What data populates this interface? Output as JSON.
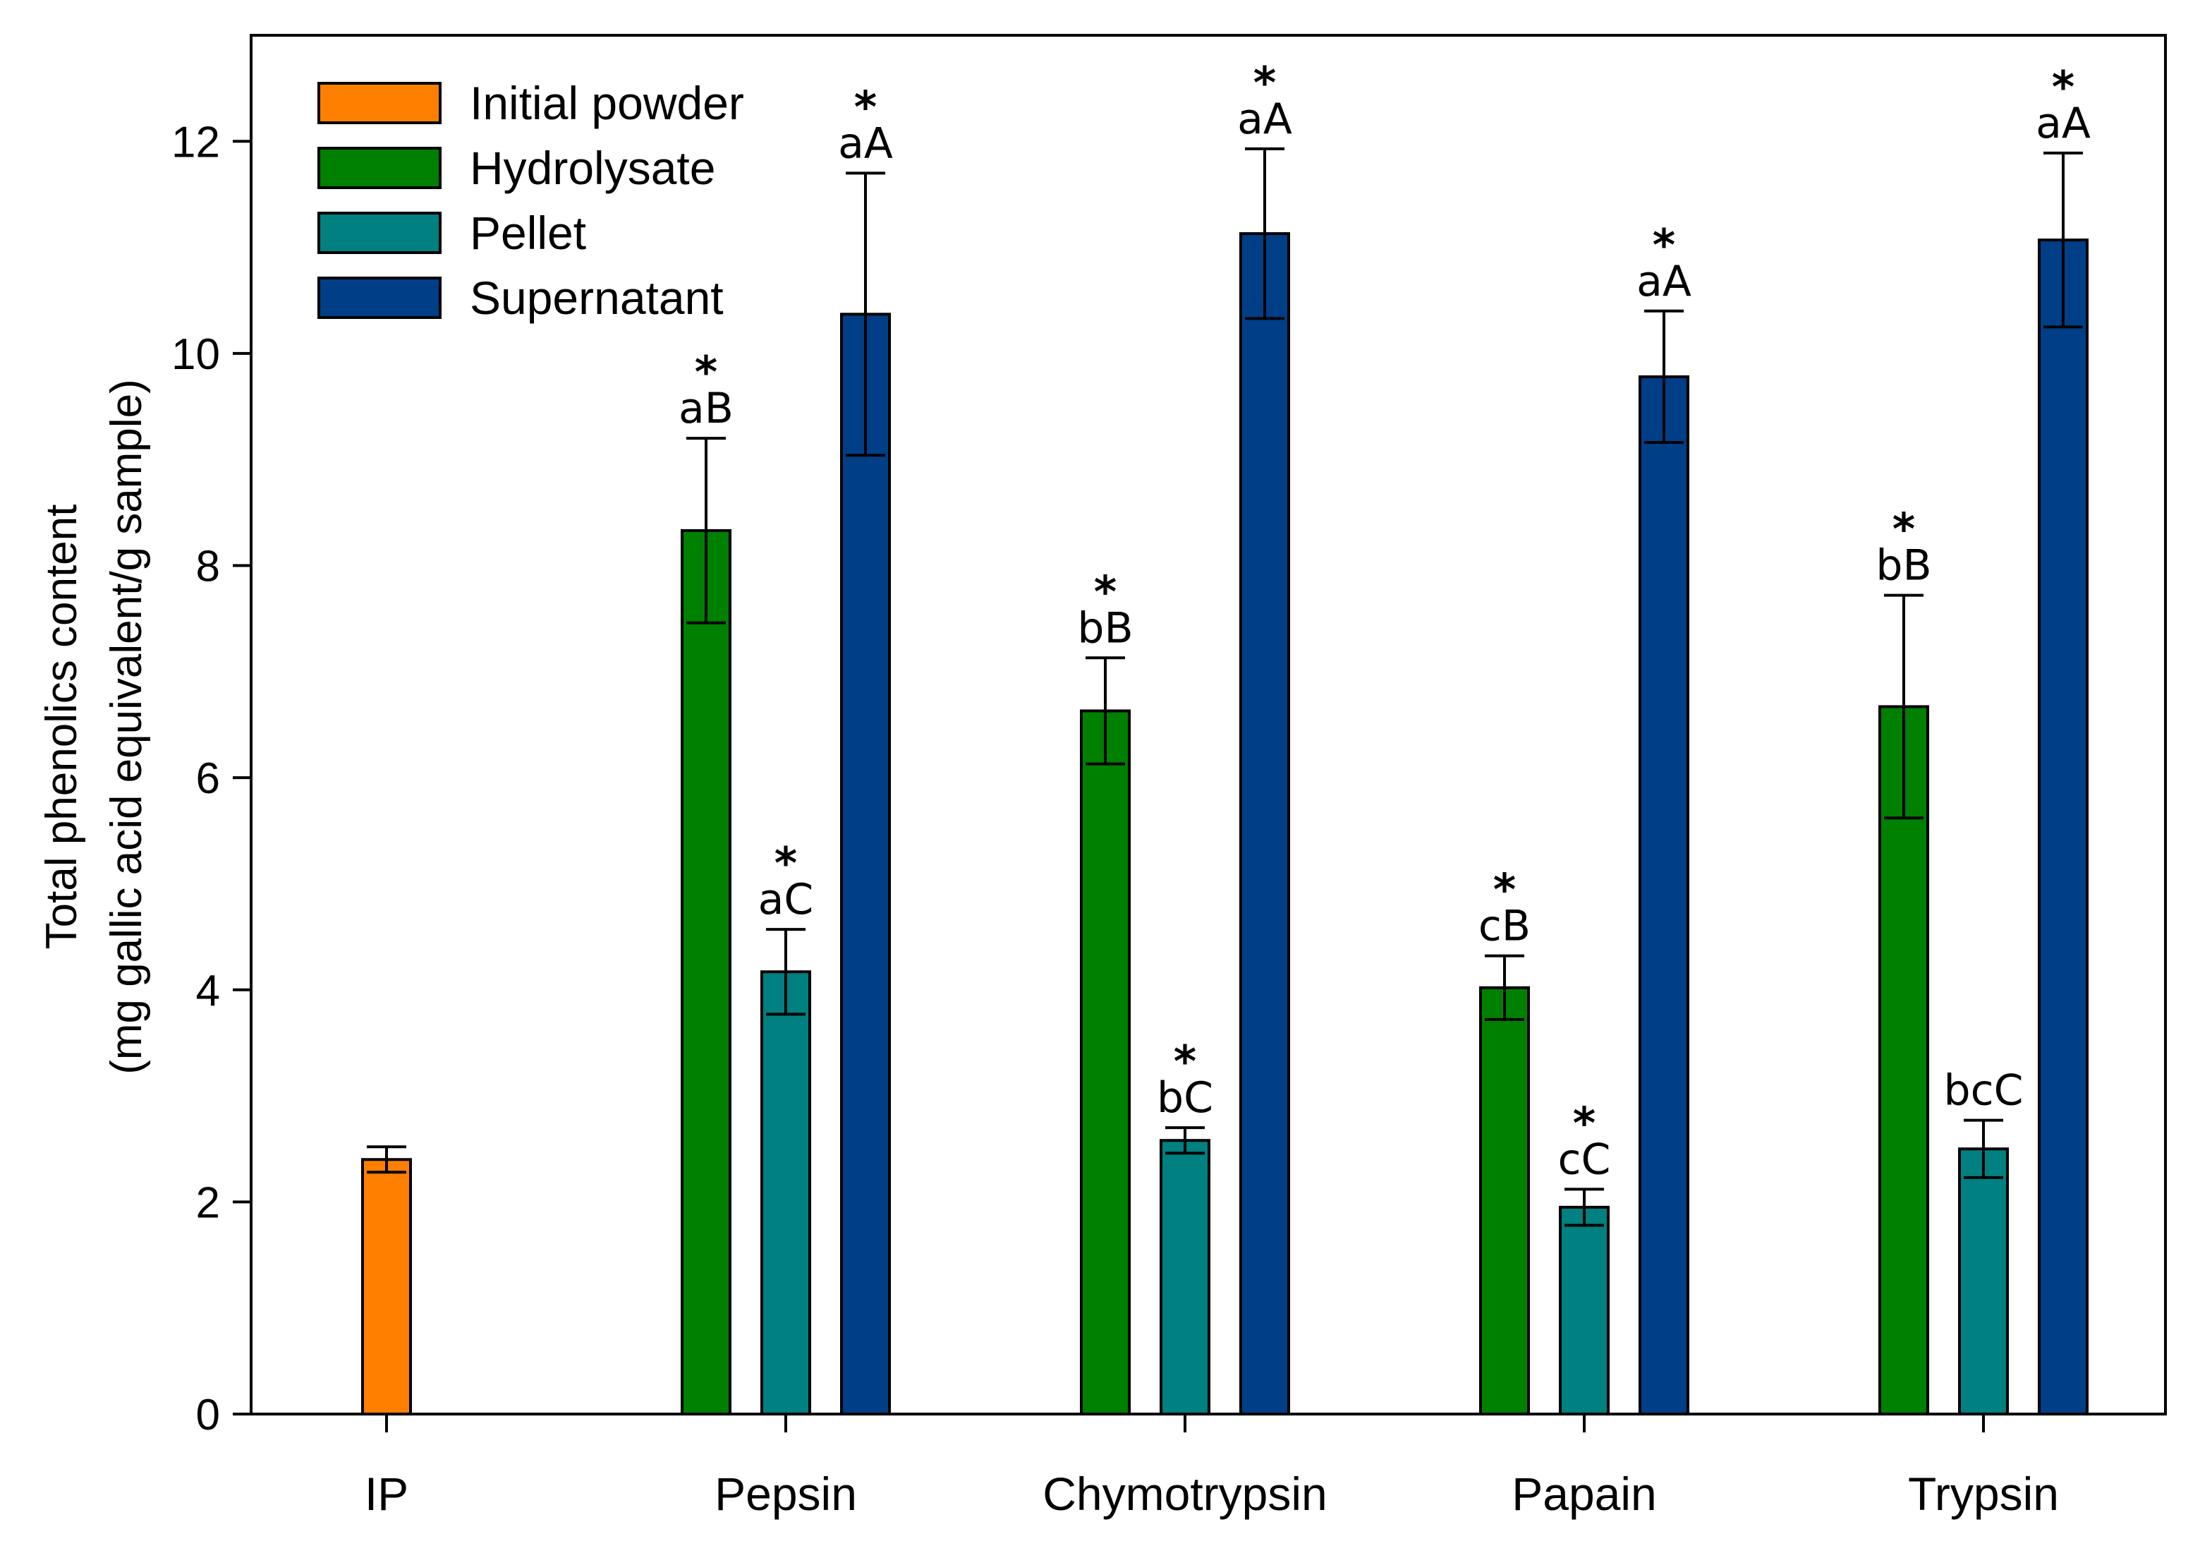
{
  "chart_data": {
    "type": "bar",
    "title": "",
    "xlabel": "",
    "ylabel_line1": "Total phenolics content",
    "ylabel_line2": "(mg gallic acid equivalent/g sample)",
    "ylim": [
      0,
      13
    ],
    "yticks": [
      0,
      2,
      4,
      6,
      8,
      10,
      12
    ],
    "legend_position": "top-left",
    "legend": [
      {
        "name": "Initial powder",
        "color": "#ff8000"
      },
      {
        "name": "Hydrolysate",
        "color": "#008000"
      },
      {
        "name": "Pellet",
        "color": "#008080"
      },
      {
        "name": "Supernatant",
        "color": "#003f87"
      }
    ],
    "categories": [
      "IP",
      "Pepsin",
      "Chymotrypsin",
      "Papain",
      "Trypsin"
    ],
    "groups": [
      {
        "category": "IP",
        "bars": [
          {
            "series": "Initial powder",
            "value": 2.4,
            "error": 0.12,
            "label": "",
            "star": false
          }
        ]
      },
      {
        "category": "Pepsin",
        "bars": [
          {
            "series": "Hydrolysate",
            "value": 8.33,
            "error": 0.87,
            "label": "aB",
            "star": true
          },
          {
            "series": "Pellet",
            "value": 4.17,
            "error": 0.4,
            "label": "aC",
            "star": true
          },
          {
            "series": "Supernatant",
            "value": 10.37,
            "error": 1.33,
            "label": "aA",
            "star": true
          }
        ]
      },
      {
        "category": "Chymotrypsin",
        "bars": [
          {
            "series": "Hydrolysate",
            "value": 6.63,
            "error": 0.5,
            "label": "bB",
            "star": true
          },
          {
            "series": "Pellet",
            "value": 2.58,
            "error": 0.12,
            "label": "bC",
            "star": true
          },
          {
            "series": "Supernatant",
            "value": 11.13,
            "error": 0.8,
            "label": "aA",
            "star": true
          }
        ]
      },
      {
        "category": "Papain",
        "bars": [
          {
            "series": "Hydrolysate",
            "value": 4.02,
            "error": 0.3,
            "label": "cB",
            "star": true
          },
          {
            "series": "Pellet",
            "value": 1.95,
            "error": 0.17,
            "label": "cC",
            "star": true
          },
          {
            "series": "Supernatant",
            "value": 9.78,
            "error": 0.62,
            "label": "aA",
            "star": true
          }
        ]
      },
      {
        "category": "Trypsin",
        "bars": [
          {
            "series": "Hydrolysate",
            "value": 6.67,
            "error": 1.05,
            "label": "bB",
            "star": true
          },
          {
            "series": "Pellet",
            "value": 2.5,
            "error": 0.27,
            "label": "bcC",
            "star": false
          },
          {
            "series": "Supernatant",
            "value": 11.07,
            "error": 0.82,
            "label": "aA",
            "star": true
          }
        ]
      }
    ]
  }
}
